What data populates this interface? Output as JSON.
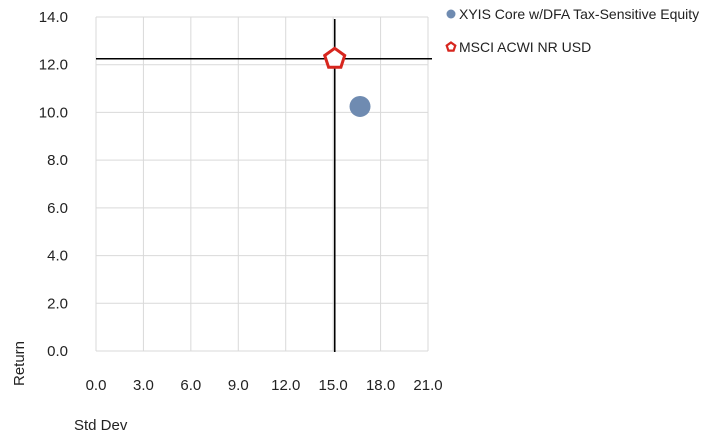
{
  "chart_data": {
    "type": "scatter",
    "xlabel": "Std Dev",
    "ylabel": "Return",
    "xlim": [
      0,
      21
    ],
    "ylim": [
      0,
      14
    ],
    "x_ticks": [
      0,
      3,
      6,
      9,
      12,
      15,
      18,
      21
    ],
    "y_ticks": [
      0,
      2,
      4,
      6,
      8,
      10,
      12,
      14
    ],
    "x_tick_labels": [
      "0.0",
      "3.0",
      "6.0",
      "9.0",
      "12.0",
      "15.0",
      "18.0",
      "21.0"
    ],
    "y_tick_labels": [
      "0.0",
      "2.0",
      "4.0",
      "6.0",
      "8.0",
      "10.0",
      "12.0",
      "14.0"
    ],
    "grid": true,
    "legend_position": "top-right",
    "series": [
      {
        "name": "XYIS Core w/DFA Tax-Sensitive Equity",
        "marker": "circle",
        "color": "#6f8bb1",
        "x": 16.7,
        "y": 10.25
      },
      {
        "name": "MSCI ACWI NR USD",
        "marker": "pentagon",
        "color": "#d7261e",
        "x": 15.1,
        "y": 12.25
      }
    ],
    "reference_lines": {
      "x": 15.1,
      "y": 12.25,
      "color": "#000000"
    }
  }
}
